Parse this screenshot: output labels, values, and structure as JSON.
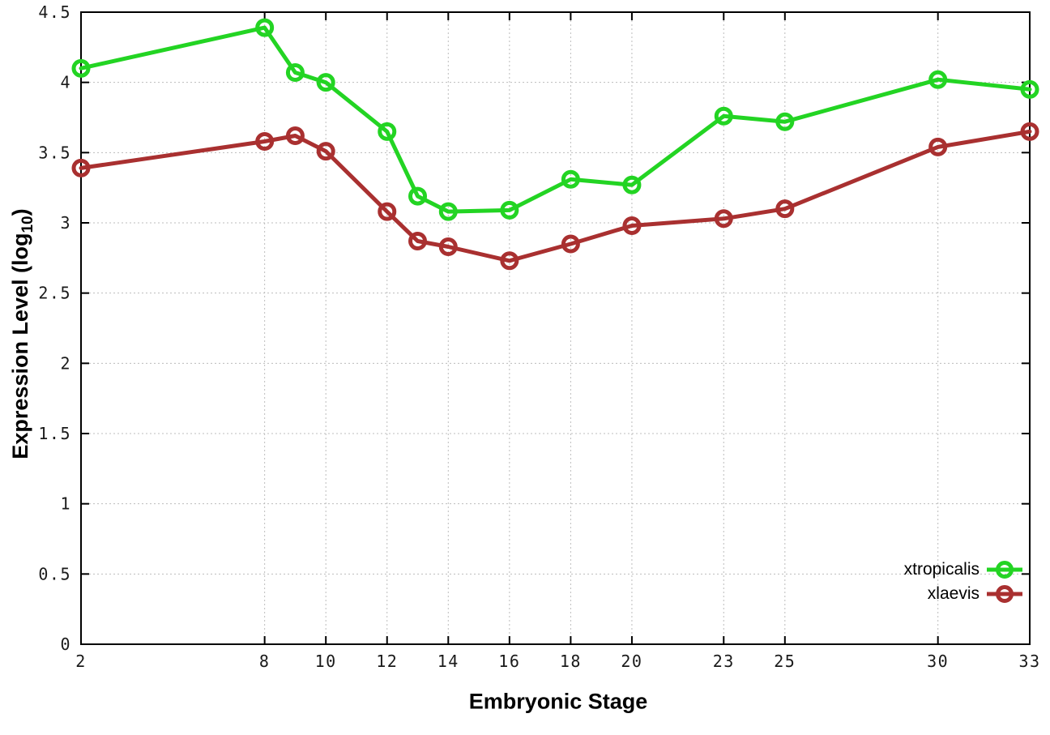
{
  "figure": {
    "background": "#ffffff",
    "border_color": "#000000",
    "grid_color": "#bcbcbc",
    "tick_label_color": "#1a1a1a"
  },
  "chart_data": {
    "type": "line",
    "title": "",
    "xlabel": "Embryonic Stage",
    "ylabel": {
      "text": "Expression Level (log",
      "sub": "10",
      "suffix": ")"
    },
    "x": [
      2,
      8,
      9,
      10,
      12,
      13,
      14,
      16,
      18,
      20,
      23,
      25,
      30,
      33
    ],
    "xlim": [
      2,
      33
    ],
    "ylim": [
      0,
      4.5
    ],
    "x_ticks": [
      2,
      8,
      10,
      12,
      14,
      16,
      18,
      20,
      23,
      25,
      30,
      33
    ],
    "y_ticks": [
      0,
      0.5,
      1,
      1.5,
      2,
      2.5,
      3,
      3.5,
      4,
      4.5
    ],
    "grid": true,
    "grid_style": "dotted",
    "legend_position": "bottom-right",
    "marker": "open-circle",
    "line_width": 5,
    "series": [
      {
        "name": "xtropicalis",
        "color": "#23d423",
        "values": [
          4.1,
          4.39,
          4.07,
          4.0,
          3.65,
          3.19,
          3.08,
          3.09,
          3.31,
          3.27,
          3.76,
          3.72,
          4.02,
          3.95
        ]
      },
      {
        "name": "xlaevis",
        "color": "#a93030",
        "values": [
          3.39,
          3.58,
          3.62,
          3.51,
          3.08,
          2.87,
          2.83,
          2.73,
          2.85,
          2.98,
          3.03,
          3.1,
          3.54,
          3.65
        ]
      }
    ]
  }
}
